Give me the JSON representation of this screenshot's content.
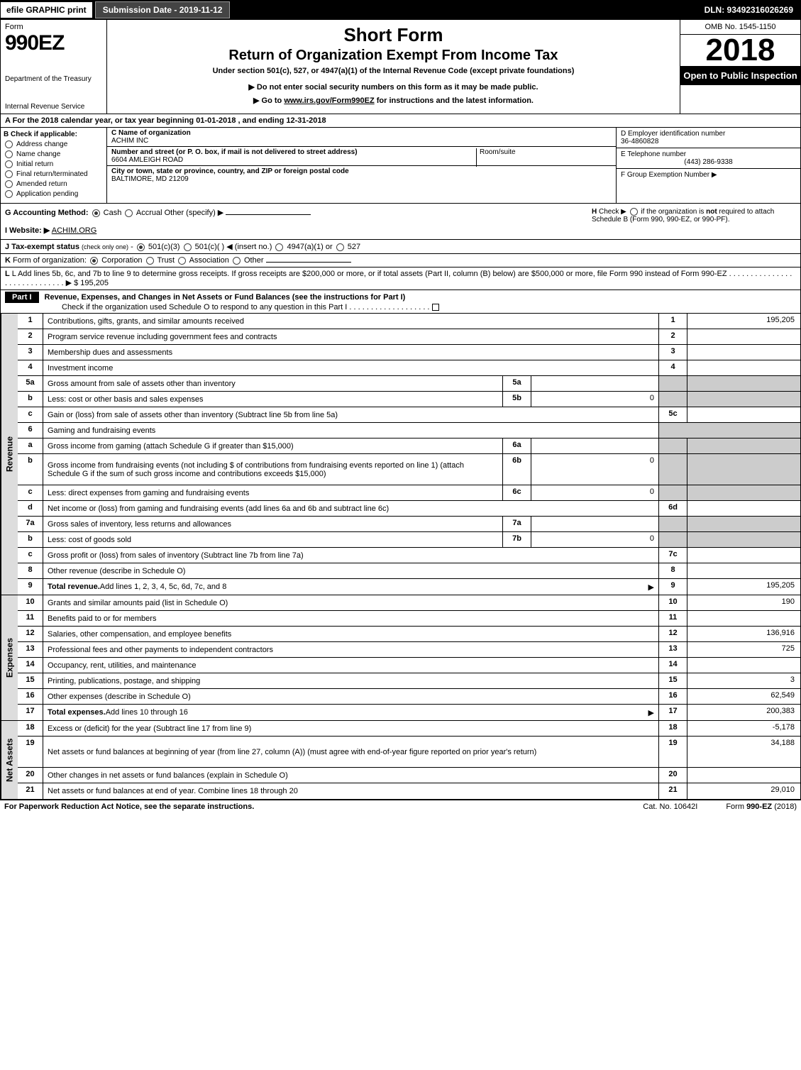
{
  "top": {
    "efile": "efile GRAPHIC print",
    "submission_label": "Submission Date - 2019-11-12",
    "dln": "DLN: 93492316026269"
  },
  "header": {
    "form_word": "Form",
    "form_num": "990EZ",
    "dept": "Department of the Treasury",
    "irs": "Internal Revenue Service",
    "title1": "Short Form",
    "title2": "Return of Organization Exempt From Income Tax",
    "title3": "Under section 501(c), 527, or 4947(a)(1) of the Internal Revenue Code (except private foundations)",
    "title4": "▶ Do not enter social security numbers on this form as it may be made public.",
    "title5": "▶ Go to www.irs.gov/Form990EZ for instructions and the latest information.",
    "omb": "OMB No. 1545-1150",
    "year": "2018",
    "inspect": "Open to Public Inspection"
  },
  "row_a": "A For the 2018 calendar year, or tax year beginning 01-01-2018           , and ending 12-31-2018",
  "box_b": {
    "header": "B Check if applicable:",
    "opts": [
      "Address change",
      "Name change",
      "Initial return",
      "Final return/terminated",
      "Amended return",
      "Application pending"
    ]
  },
  "box_c": {
    "c_label": "C Name of organization",
    "c_value": "ACHIM INC",
    "addr_label": "Number and street (or P. O. box, if mail is not delivered to street address)",
    "addr_value": "6604 AMLEIGH ROAD",
    "room_label": "Room/suite",
    "city_label": "City or town, state or province, country, and ZIP or foreign postal code",
    "city_value": "BALTIMORE, MD  21209"
  },
  "box_d": {
    "d_label": "D Employer identification number",
    "d_value": "36-4860828",
    "e_label": "E Telephone number",
    "e_value": "(443) 286-9338",
    "f_label": "F Group Exemption Number  ▶"
  },
  "row_g": {
    "g": "G Accounting Method:",
    "cash": "Cash",
    "accrual": "Accrual",
    "other": "Other (specify) ▶",
    "h": "H  Check ▶      if the organization is not required to attach Schedule B (Form 990, 990-EZ, or 990-PF).",
    "i": "I Website: ▶",
    "i_val": "ACHIM.ORG",
    "j": "J Tax-exempt status (check only one) -    501(c)(3)    501(c)(  ) ◀ (insert no.)    4947(a)(1) or    527"
  },
  "row_k": "K Form of organization:     Corporation     Trust     Association     Other",
  "row_l": {
    "text": "L Add lines 5b, 6c, and 7b to line 9 to determine gross receipts. If gross receipts are $200,000 or more, or if total assets (Part II, column (B) below) are $500,000 or more, file Form 990 instead of Form 990-EZ  .  .  .  .  .  .  .  .  .  .  .  .  .  .  .  .  .  .  .  .  .  .  .  .  .  .  .  .  .  ▶ $",
    "value": "195,205"
  },
  "part1": {
    "label": "Part I",
    "title": "Revenue, Expenses, and Changes in Net Assets or Fund Balances (see the instructions for Part I)",
    "subtitle": "Check if the organization used Schedule O to respond to any question in this Part I  .  .  .  .  .  .  .  .  .  .  .  .  .  .  .  .  .  .  ."
  },
  "sections": {
    "revenue": "Revenue",
    "expenses": "Expenses",
    "netassets": "Net Assets"
  },
  "lines": [
    {
      "n": "1",
      "d": "Contributions, gifts, grants, and similar amounts received",
      "r": "1",
      "v": "195,205",
      "sec": "revenue"
    },
    {
      "n": "2",
      "d": "Program service revenue including government fees and contracts",
      "r": "2",
      "v": "",
      "sec": "revenue"
    },
    {
      "n": "3",
      "d": "Membership dues and assessments",
      "r": "3",
      "v": "",
      "sec": "revenue"
    },
    {
      "n": "4",
      "d": "Investment income",
      "r": "4",
      "v": "",
      "sec": "revenue"
    },
    {
      "n": "5a",
      "d": "Gross amount from sale of assets other than inventory",
      "sub": "5a",
      "sv": "",
      "grey": true,
      "sec": "revenue"
    },
    {
      "n": "b",
      "d": "Less: cost or other basis and sales expenses",
      "sub": "5b",
      "sv": "0",
      "grey": true,
      "sec": "revenue"
    },
    {
      "n": "c",
      "d": "Gain or (loss) from sale of assets other than inventory (Subtract line 5b from line 5a)",
      "r": "5c",
      "v": "",
      "sec": "revenue"
    },
    {
      "n": "6",
      "d": "Gaming and fundraising events",
      "grey": true,
      "nofill": true,
      "sec": "revenue"
    },
    {
      "n": "a",
      "d": "Gross income from gaming (attach Schedule G if greater than $15,000)",
      "sub": "6a",
      "sv": "",
      "grey": true,
      "sec": "revenue"
    },
    {
      "n": "b",
      "d": "Gross income from fundraising events (not including $                of contributions from fundraising events reported on line 1) (attach Schedule G if the sum of such gross income and contributions exceeds $15,000)",
      "sub": "6b",
      "sv": "0",
      "grey": true,
      "sec": "revenue",
      "multi": true
    },
    {
      "n": "c",
      "d": "Less: direct expenses from gaming and fundraising events",
      "sub": "6c",
      "sv": "0",
      "grey": true,
      "sec": "revenue"
    },
    {
      "n": "d",
      "d": "Net income or (loss) from gaming and fundraising events (add lines 6a and 6b and subtract line 6c)",
      "r": "6d",
      "v": "",
      "sec": "revenue"
    },
    {
      "n": "7a",
      "d": "Gross sales of inventory, less returns and allowances",
      "sub": "7a",
      "sv": "",
      "grey": true,
      "sec": "revenue"
    },
    {
      "n": "b",
      "d": "Less: cost of goods sold",
      "sub": "7b",
      "sv": "0",
      "grey": true,
      "sec": "revenue"
    },
    {
      "n": "c",
      "d": "Gross profit or (loss) from sales of inventory (Subtract line 7b from line 7a)",
      "r": "7c",
      "v": "",
      "sec": "revenue"
    },
    {
      "n": "8",
      "d": "Other revenue (describe in Schedule O)",
      "r": "8",
      "v": "",
      "sec": "revenue"
    },
    {
      "n": "9",
      "d": "Total revenue. Add lines 1, 2, 3, 4, 5c, 6d, 7c, and 8",
      "r": "9",
      "v": "195,205",
      "bold": true,
      "arrow": true,
      "sec": "revenue"
    },
    {
      "n": "10",
      "d": "Grants and similar amounts paid (list in Schedule O)",
      "r": "10",
      "v": "190",
      "sec": "expenses"
    },
    {
      "n": "11",
      "d": "Benefits paid to or for members",
      "r": "11",
      "v": "",
      "sec": "expenses"
    },
    {
      "n": "12",
      "d": "Salaries, other compensation, and employee benefits",
      "r": "12",
      "v": "136,916",
      "sec": "expenses"
    },
    {
      "n": "13",
      "d": "Professional fees and other payments to independent contractors",
      "r": "13",
      "v": "725",
      "sec": "expenses"
    },
    {
      "n": "14",
      "d": "Occupancy, rent, utilities, and maintenance",
      "r": "14",
      "v": "",
      "sec": "expenses"
    },
    {
      "n": "15",
      "d": "Printing, publications, postage, and shipping",
      "r": "15",
      "v": "3",
      "sec": "expenses"
    },
    {
      "n": "16",
      "d": "Other expenses (describe in Schedule O)",
      "r": "16",
      "v": "62,549",
      "sec": "expenses"
    },
    {
      "n": "17",
      "d": "Total expenses. Add lines 10 through 16",
      "r": "17",
      "v": "200,383",
      "bold": true,
      "arrow": true,
      "sec": "expenses"
    },
    {
      "n": "18",
      "d": "Excess or (deficit) for the year (Subtract line 17 from line 9)",
      "r": "18",
      "v": "-5,178",
      "sec": "netassets"
    },
    {
      "n": "19",
      "d": "Net assets or fund balances at beginning of year (from line 27, column (A)) (must agree with end-of-year figure reported on prior year's return)",
      "r": "19",
      "v": "34,188",
      "multi": true,
      "sec": "netassets"
    },
    {
      "n": "20",
      "d": "Other changes in net assets or fund balances (explain in Schedule O)",
      "r": "20",
      "v": "",
      "sec": "netassets"
    },
    {
      "n": "21",
      "d": "Net assets or fund balances at end of year. Combine lines 18 through 20",
      "r": "21",
      "v": "29,010",
      "sec": "netassets"
    }
  ],
  "footer": {
    "l": "For Paperwork Reduction Act Notice, see the separate instructions.",
    "c": "Cat. No. 10642I",
    "r": "Form 990-EZ (2018)"
  },
  "colors": {
    "black": "#000000",
    "grey_fill": "#cccccc",
    "side_fill": "#dddddd"
  }
}
